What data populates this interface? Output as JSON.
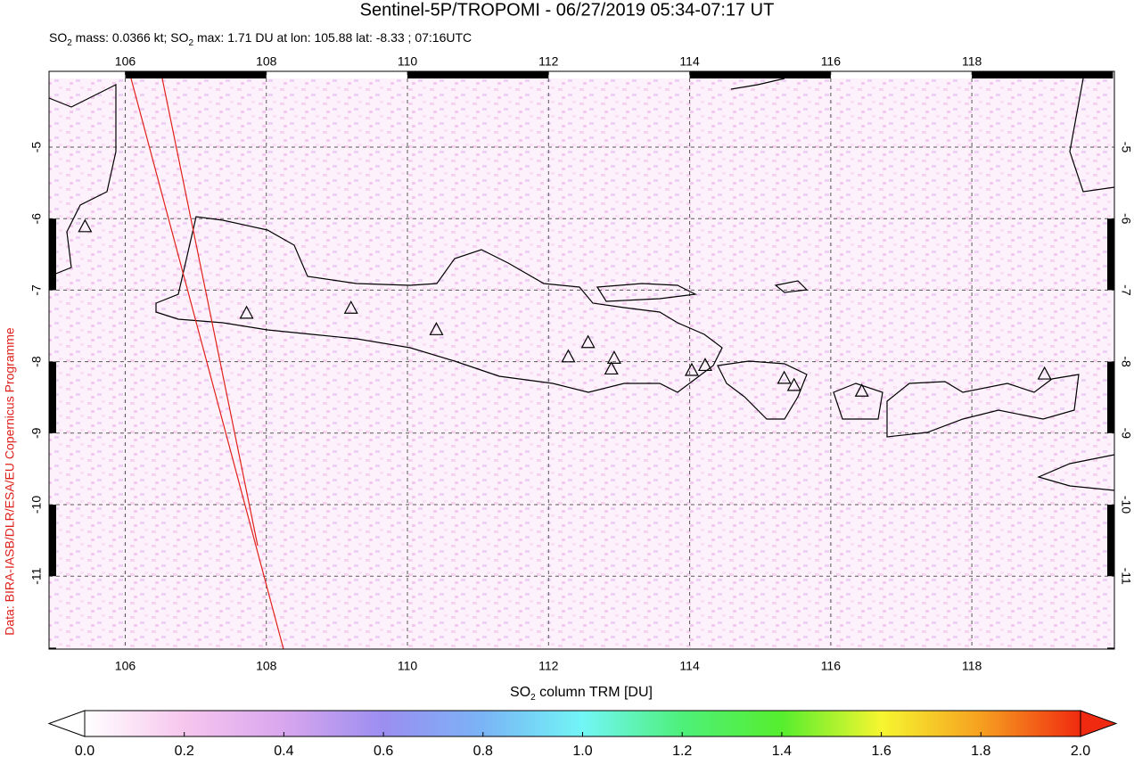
{
  "chart_data": {
    "type": "map",
    "title": "Sentinel-5P/TROPOMI - 06/27/2019 05:34-07:17 UT",
    "subtitle_parts": [
      "SO",
      "2",
      " mass: 0.0366 kt; SO",
      "2",
      " max: 1.71 DU at lon: 105.88 lat: -8.33 ; 07:16UTC"
    ],
    "credit": "Data: BIRA-IASB/DLR/ESA/EU Copernicus Programme",
    "xlim": [
      104.92,
      120.02
    ],
    "ylim": [
      -12.02,
      -3.94
    ],
    "xticks": [
      106,
      108,
      110,
      112,
      114,
      116,
      118
    ],
    "yticks": [
      -5,
      -6,
      -7,
      -8,
      -9,
      -10,
      -11
    ],
    "grid": true,
    "volcanoes": {
      "x": [
        105.43,
        107.72,
        109.2,
        110.41,
        112.28,
        112.56,
        112.93,
        112.89,
        114.03,
        114.22,
        115.34,
        115.48,
        116.44,
        119.03
      ],
      "y": [
        -6.12,
        -7.33,
        -7.26,
        -7.56,
        -7.94,
        -7.74,
        -7.96,
        -8.11,
        -8.13,
        -8.06,
        -8.24,
        -8.34,
        -8.42,
        -8.18
      ]
    },
    "colorbar": {
      "label_parts": [
        "SO",
        "2",
        " column TRM [DU]"
      ],
      "lim": [
        0,
        2
      ],
      "ticks": [
        {
          "value": 0,
          "label": "0.0"
        },
        {
          "value": 0.2,
          "label": "0.2"
        },
        {
          "value": 0.4,
          "label": "0.4"
        },
        {
          "value": 0.6,
          "label": "0.6"
        },
        {
          "value": 0.8,
          "label": "0.8"
        },
        {
          "value": 1.0,
          "label": "1.0"
        },
        {
          "value": 1.2,
          "label": "1.2"
        },
        {
          "value": 1.4,
          "label": "1.4"
        },
        {
          "value": 1.6,
          "label": "1.6"
        },
        {
          "value": 1.8,
          "label": "1.8"
        },
        {
          "value": 2.0,
          "label": "2.0"
        }
      ],
      "colors": [
        "#ffffff",
        "#f7c6ee",
        "#d9a6ee",
        "#9b8ef0",
        "#7ab4f6",
        "#72f6f6",
        "#4ef07a",
        "#56ee2e",
        "#f6f630",
        "#f6a020",
        "#f02a10"
      ]
    }
  }
}
